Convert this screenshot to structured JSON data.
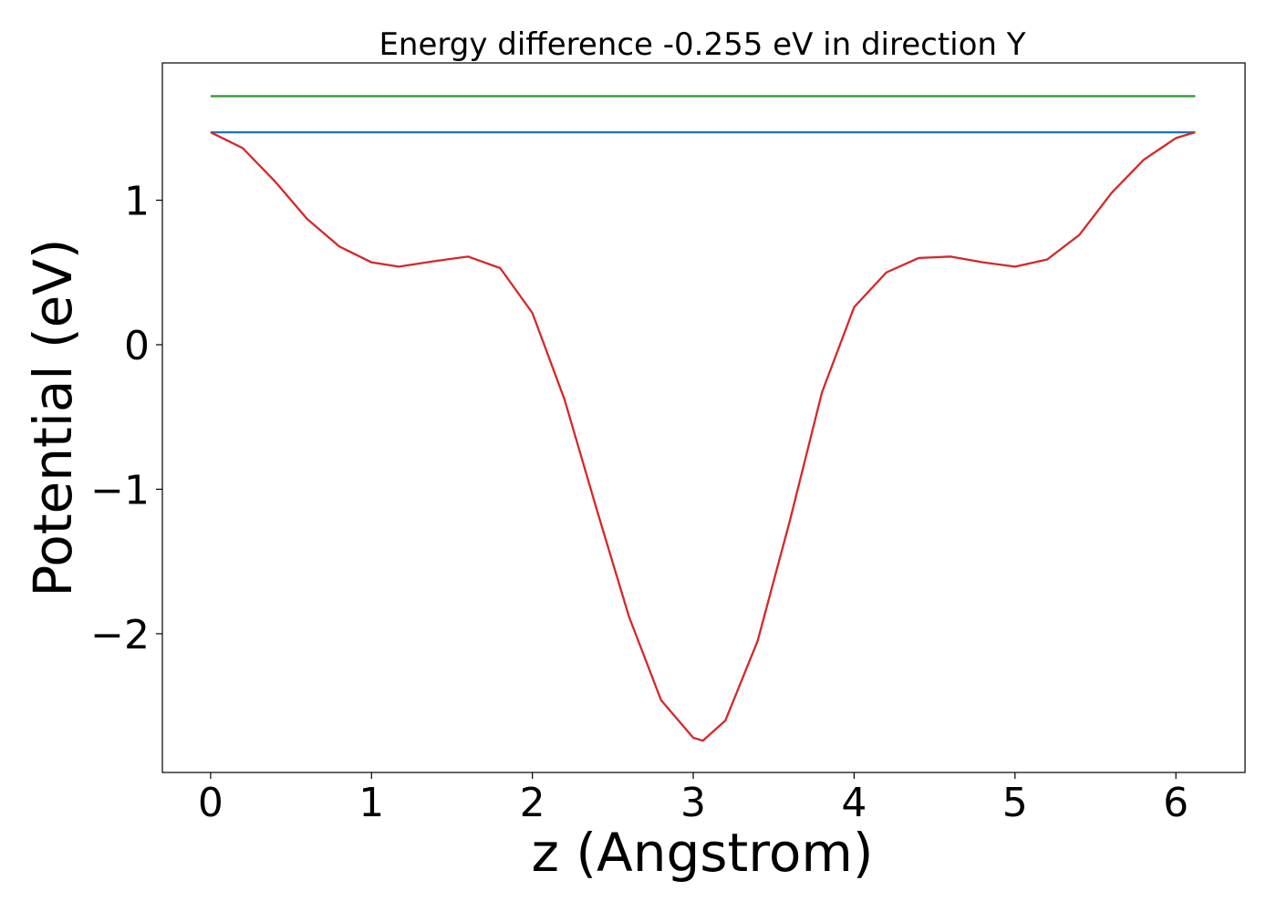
{
  "chart_data": {
    "type": "line",
    "title": "Energy difference -0.255 eV in direction Y",
    "xlabel": "z (Angstrom)",
    "ylabel": "Potential (eV)",
    "xlim": [
      -0.3,
      6.43
    ],
    "ylim": [
      -2.96,
      1.95
    ],
    "xticks": [
      {
        "value": 0,
        "label": "0"
      },
      {
        "value": 1,
        "label": "1"
      },
      {
        "value": 2,
        "label": "2"
      },
      {
        "value": 3,
        "label": "3"
      },
      {
        "value": 4,
        "label": "4"
      },
      {
        "value": 5,
        "label": "5"
      },
      {
        "value": 6,
        "label": "6"
      }
    ],
    "yticks": [
      {
        "value": -2,
        "label": "−2"
      },
      {
        "value": -1,
        "label": "−1"
      },
      {
        "value": 0,
        "label": "0"
      },
      {
        "value": 1,
        "label": "1"
      }
    ],
    "grid": false,
    "legend": "none",
    "series": [
      {
        "color": "#2ca02c",
        "x": [
          0,
          6.12
        ],
        "y": [
          1.72,
          1.72
        ]
      },
      {
        "color": "#1f77b4",
        "x": [
          0,
          6.12
        ],
        "y": [
          1.47,
          1.47
        ]
      },
      {
        "color": "#d62728",
        "x": [
          0,
          0.2,
          0.4,
          0.6,
          0.8,
          1.0,
          1.17,
          1.4,
          1.6,
          1.8,
          2.0,
          2.2,
          2.4,
          2.6,
          2.8,
          3.0,
          3.06,
          3.2,
          3.4,
          3.6,
          3.8,
          4.0,
          4.2,
          4.4,
          4.6,
          4.8,
          5.0,
          5.2,
          5.4,
          5.6,
          5.8,
          6.0,
          6.12
        ],
        "y": [
          1.47,
          1.36,
          1.13,
          0.87,
          0.68,
          0.57,
          0.54,
          0.58,
          0.61,
          0.53,
          0.22,
          -0.38,
          -1.14,
          -1.88,
          -2.46,
          -2.72,
          -2.74,
          -2.6,
          -2.05,
          -1.22,
          -0.33,
          0.26,
          0.5,
          0.6,
          0.61,
          0.57,
          0.54,
          0.59,
          0.76,
          1.05,
          1.28,
          1.43,
          1.47
        ]
      }
    ]
  }
}
